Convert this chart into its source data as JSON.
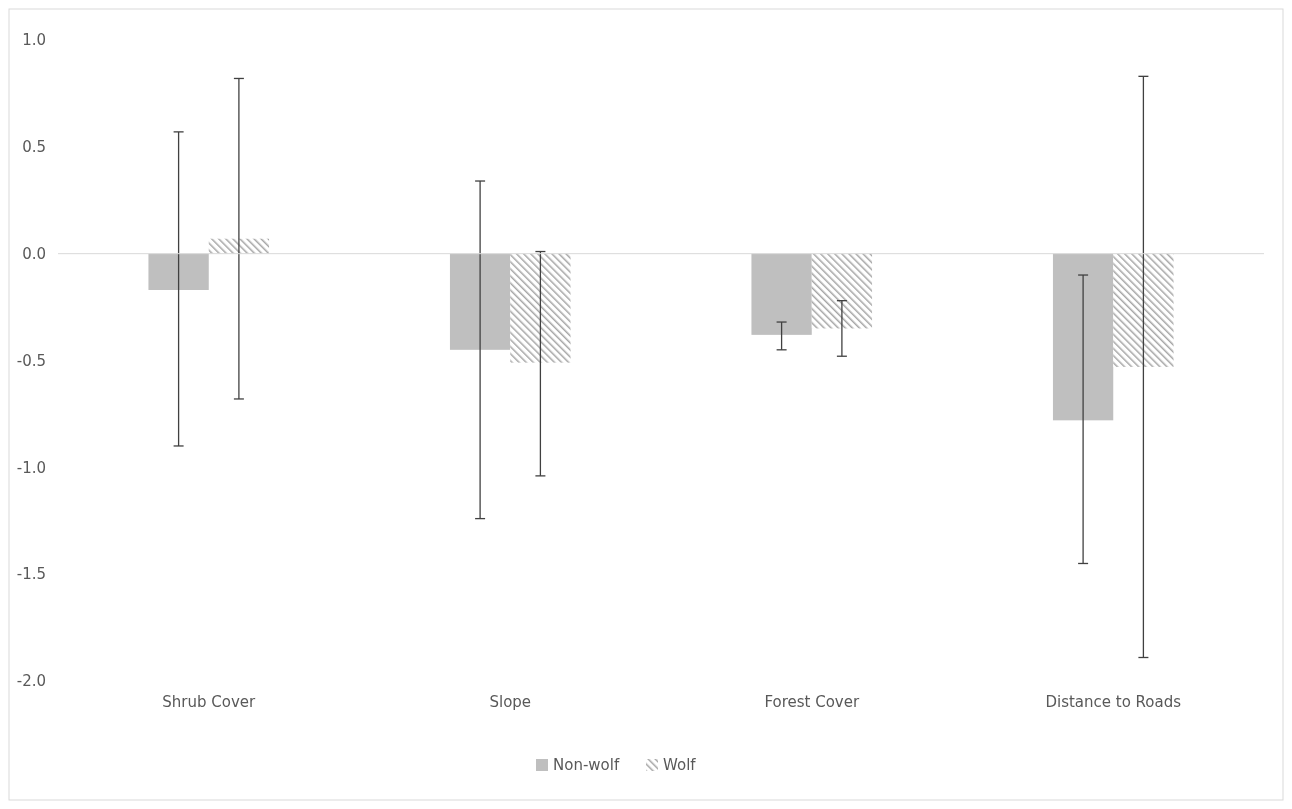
{
  "chart_data": {
    "type": "bar",
    "categories": [
      "Shrub Cover",
      "Slope",
      "Forest Cover",
      "Distance to Roads"
    ],
    "series": [
      {
        "name": "Non-wolf",
        "color": "#bfbfbf",
        "values": [
          -0.17,
          -0.45,
          -0.38,
          -0.78
        ],
        "errors": [
          [
            -0.9,
            0.57
          ],
          [
            -1.24,
            0.34
          ],
          [
            -0.45,
            -0.32
          ],
          [
            -1.45,
            -0.1
          ]
        ]
      },
      {
        "name": "Wolf",
        "color": "#a6a6a6",
        "values": [
          0.07,
          -0.51,
          -0.35,
          -0.53
        ],
        "errors": [
          [
            -0.68,
            0.82
          ],
          [
            -1.04,
            0.01
          ],
          [
            -0.48,
            -0.22
          ],
          [
            -1.89,
            0.83
          ]
        ]
      }
    ],
    "ylim": [
      -2,
      1
    ],
    "yticks": [
      {
        "value": -2,
        "label": "-2.0"
      },
      {
        "value": -1.5,
        "label": "-1.5"
      },
      {
        "value": -1,
        "label": "-1.0"
      },
      {
        "value": -0.5,
        "label": "-0.5"
      },
      {
        "value": 0,
        "label": "0.0"
      },
      {
        "value": 0.5,
        "label": "0.5"
      },
      {
        "value": 1,
        "label": "1.0"
      }
    ],
    "legend": "bottom"
  }
}
